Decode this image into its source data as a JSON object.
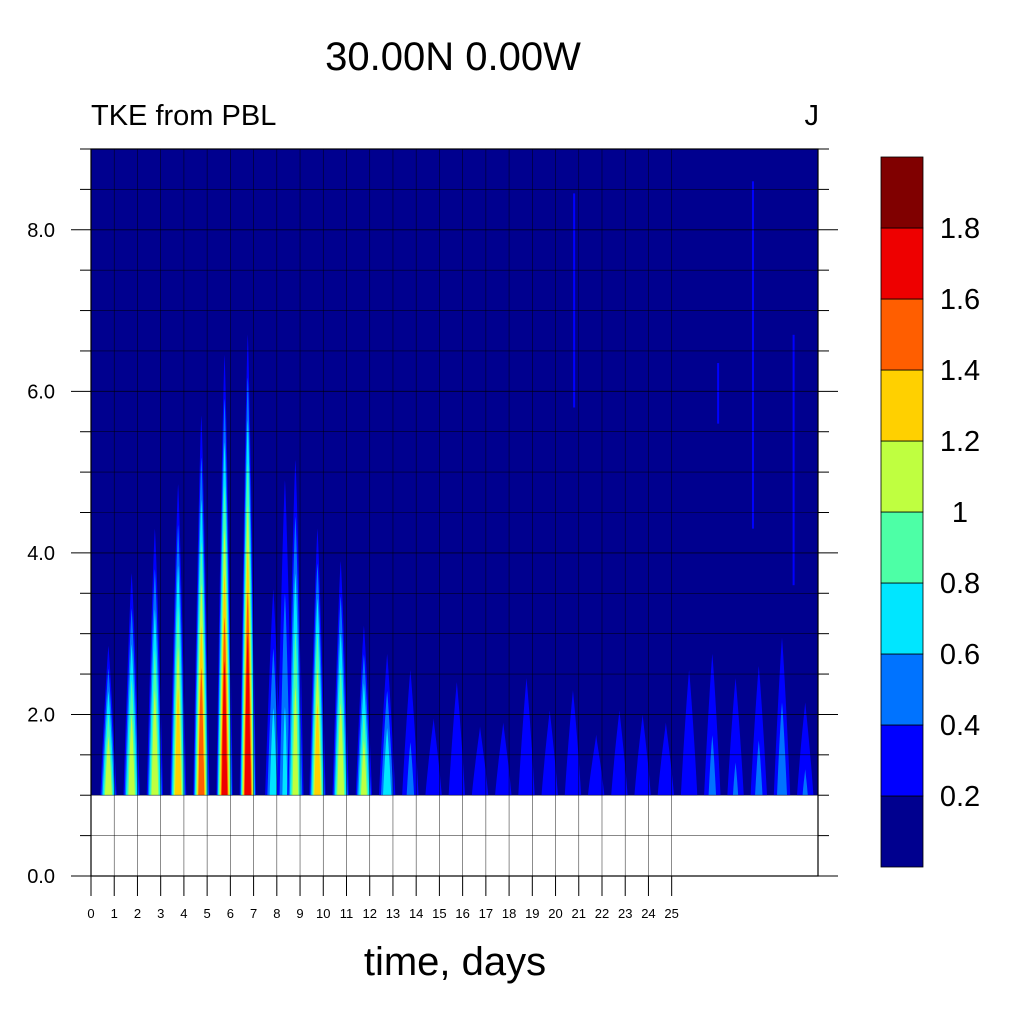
{
  "chart_data": {
    "type": "heatmap",
    "title": "30.00N  0.00W",
    "left_string": "TKE from PBL",
    "right_string": "J",
    "xlabel": "time, days",
    "ylabel": "",
    "xlim": [
      0,
      31.3
    ],
    "ylim": [
      0,
      9
    ],
    "x_ticks": [
      "0",
      "1",
      "2",
      "3",
      "4",
      "5",
      "6",
      "7",
      "8",
      "9",
      "10",
      "11",
      "12",
      "13",
      "14",
      "15",
      "16",
      "17",
      "18",
      "19",
      "20",
      "21",
      "22",
      "23",
      "24",
      "25"
    ],
    "y_ticks": [
      "0.0",
      "2.0",
      "4.0",
      "6.0",
      "8.0"
    ],
    "y_tick_values": [
      0,
      2,
      4,
      6,
      8
    ],
    "data_floor": 1.0,
    "background_value": 0.1,
    "colorbar": {
      "levels": [
        0.2,
        0.4,
        0.6,
        0.8,
        1.0,
        1.2,
        1.4,
        1.6,
        1.8
      ],
      "labels": [
        "0.2",
        "0.4",
        "0.6",
        "0.8",
        "1",
        "1.2",
        "1.4",
        "1.6",
        "1.8"
      ],
      "colors": [
        "#00008F",
        "#0000FF",
        "#0073FF",
        "#00E6FF",
        "#4DFFA6",
        "#BFFF40",
        "#FFD000",
        "#FF5E00",
        "#EE0000",
        "#800000"
      ]
    },
    "plumes": [
      {
        "day": 0.75,
        "top": 2.85,
        "max": 1.15
      },
      {
        "day": 1.75,
        "top": 3.75,
        "max": 1.1
      },
      {
        "day": 2.75,
        "top": 4.3,
        "max": 1.15
      },
      {
        "day": 3.75,
        "top": 4.85,
        "max": 1.3
      },
      {
        "day": 4.75,
        "top": 5.7,
        "max": 1.5
      },
      {
        "day": 5.75,
        "top": 6.45,
        "max": 1.65
      },
      {
        "day": 6.75,
        "top": 6.7,
        "max": 1.75
      },
      {
        "day": 7.85,
        "top": 3.55,
        "max": 0.7
      },
      {
        "day": 8.35,
        "top": 4.9,
        "max": 0.6
      },
      {
        "day": 8.8,
        "top": 5.15,
        "max": 1.05
      },
      {
        "day": 9.75,
        "top": 4.3,
        "max": 1.3
      },
      {
        "day": 10.75,
        "top": 3.9,
        "max": 1.15
      },
      {
        "day": 11.75,
        "top": 3.1,
        "max": 1.05
      },
      {
        "day": 12.75,
        "top": 2.75,
        "max": 0.75
      },
      {
        "day": 13.75,
        "top": 2.55,
        "max": 0.45
      },
      {
        "day": 14.75,
        "top": 1.95,
        "max": 0.35
      },
      {
        "day": 15.75,
        "top": 2.4,
        "max": 0.35
      },
      {
        "day": 16.75,
        "top": 1.85,
        "max": 0.3
      },
      {
        "day": 17.75,
        "top": 1.9,
        "max": 0.3
      },
      {
        "day": 18.75,
        "top": 2.45,
        "max": 0.35
      },
      {
        "day": 19.75,
        "top": 2.05,
        "max": 0.3
      },
      {
        "day": 20.75,
        "top": 2.3,
        "max": 0.35
      },
      {
        "day": 21.75,
        "top": 1.75,
        "max": 0.3
      },
      {
        "day": 22.75,
        "top": 2.05,
        "max": 0.3
      },
      {
        "day": 23.75,
        "top": 2.0,
        "max": 0.3
      },
      {
        "day": 24.75,
        "top": 1.9,
        "max": 0.3
      },
      {
        "day": 25.75,
        "top": 2.55,
        "max": 0.35
      },
      {
        "day": 26.75,
        "top": 2.75,
        "max": 0.45
      },
      {
        "day": 27.75,
        "top": 2.45,
        "max": 0.4
      },
      {
        "day": 28.75,
        "top": 2.6,
        "max": 0.45
      },
      {
        "day": 29.75,
        "top": 2.95,
        "max": 0.55
      },
      {
        "day": 30.75,
        "top": 2.15,
        "max": 0.4
      }
    ],
    "filaments": [
      {
        "day": 20.8,
        "bottom": 5.8,
        "top": 8.45
      },
      {
        "day": 27.0,
        "bottom": 5.6,
        "top": 6.35
      },
      {
        "day": 28.5,
        "bottom": 4.3,
        "top": 8.6
      },
      {
        "day": 30.25,
        "bottom": 3.6,
        "top": 6.7
      }
    ]
  }
}
